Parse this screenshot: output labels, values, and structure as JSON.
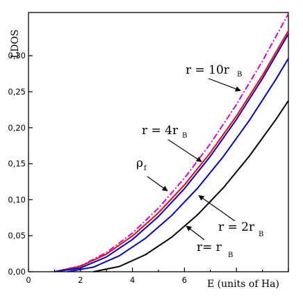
{
  "chart_data": {
    "type": "line",
    "xlabel": "E (units of Ha)",
    "ylabel": "LDOS",
    "xlim": [
      0,
      10
    ],
    "ylim": [
      0,
      0.36
    ],
    "xticks": [
      "0",
      "2",
      "4",
      "6"
    ],
    "yticks": [
      "0,00",
      "0,05",
      "0,10",
      "0,15",
      "0,20",
      "0,25",
      "0,30"
    ],
    "ytick_values": [
      0,
      0.05,
      0.1,
      0.15,
      0.2,
      0.25,
      0.3
    ],
    "xtick_values": [
      0,
      2,
      4,
      6
    ],
    "grid": false,
    "series": [
      {
        "color": "#dd00dd",
        "dash": "dash-dot",
        "x": [
          1.0,
          2.0,
          3.0,
          4.0,
          5.0,
          6.0,
          7.0,
          8.0,
          9.0,
          10.0
        ],
        "y": [
          0.0,
          0.0081,
          0.0266,
          0.0537,
          0.0883,
          0.1299,
          0.1779,
          0.2322,
          0.2924,
          0.3584
        ]
      },
      {
        "color": "#ff0000",
        "dash": "solid",
        "x": [
          1.0,
          2.0,
          3.0,
          4.0,
          5.0,
          6.0,
          7.0,
          8.0,
          9.0,
          10.0
        ],
        "y": [
          0.0,
          0.0075,
          0.0245,
          0.0496,
          0.0818,
          0.1205,
          0.1654,
          0.2162,
          0.2726,
          0.3346
        ]
      },
      {
        "color": "#0000cc",
        "dash": "solid",
        "x": [
          1.0,
          2.0,
          3.0,
          4.0,
          5.0,
          6.0,
          7.0,
          8.0,
          9.0,
          10.0
        ],
        "y": [
          0.0,
          0.0052,
          0.0206,
          0.0448,
          0.0767,
          0.1154,
          0.1605,
          0.2115,
          0.2681,
          0.3302
        ]
      },
      {
        "color": "#0000cc",
        "dash": "solid",
        "x": [
          1.5,
          2.5,
          3.5,
          4.5,
          5.5,
          6.5,
          7.5,
          8.5,
          9.5,
          10.0
        ],
        "y": [
          0.0,
          0.0064,
          0.0223,
          0.0464,
          0.0778,
          0.1158,
          0.1601,
          0.2103,
          0.2661,
          0.2962
        ]
      },
      {
        "color": "#000000",
        "dash": "solid",
        "x": [
          2.5,
          3.5,
          4.5,
          5.5,
          6.5,
          7.5,
          8.5,
          9.5,
          10.0
        ],
        "y": [
          0.0,
          0.0073,
          0.0236,
          0.0477,
          0.0789,
          0.1167,
          0.1607,
          0.2105,
          0.2375
        ]
      }
    ],
    "annotations": [
      {
        "main": "r = 10r",
        "sub": "B"
      },
      {
        "main": "r = 4r",
        "sub": "B"
      },
      {
        "main": "ρ",
        "sub": "f"
      },
      {
        "main": "r = 2r",
        "sub": "B"
      },
      {
        "main": "r= r",
        "sub": "B"
      }
    ]
  }
}
